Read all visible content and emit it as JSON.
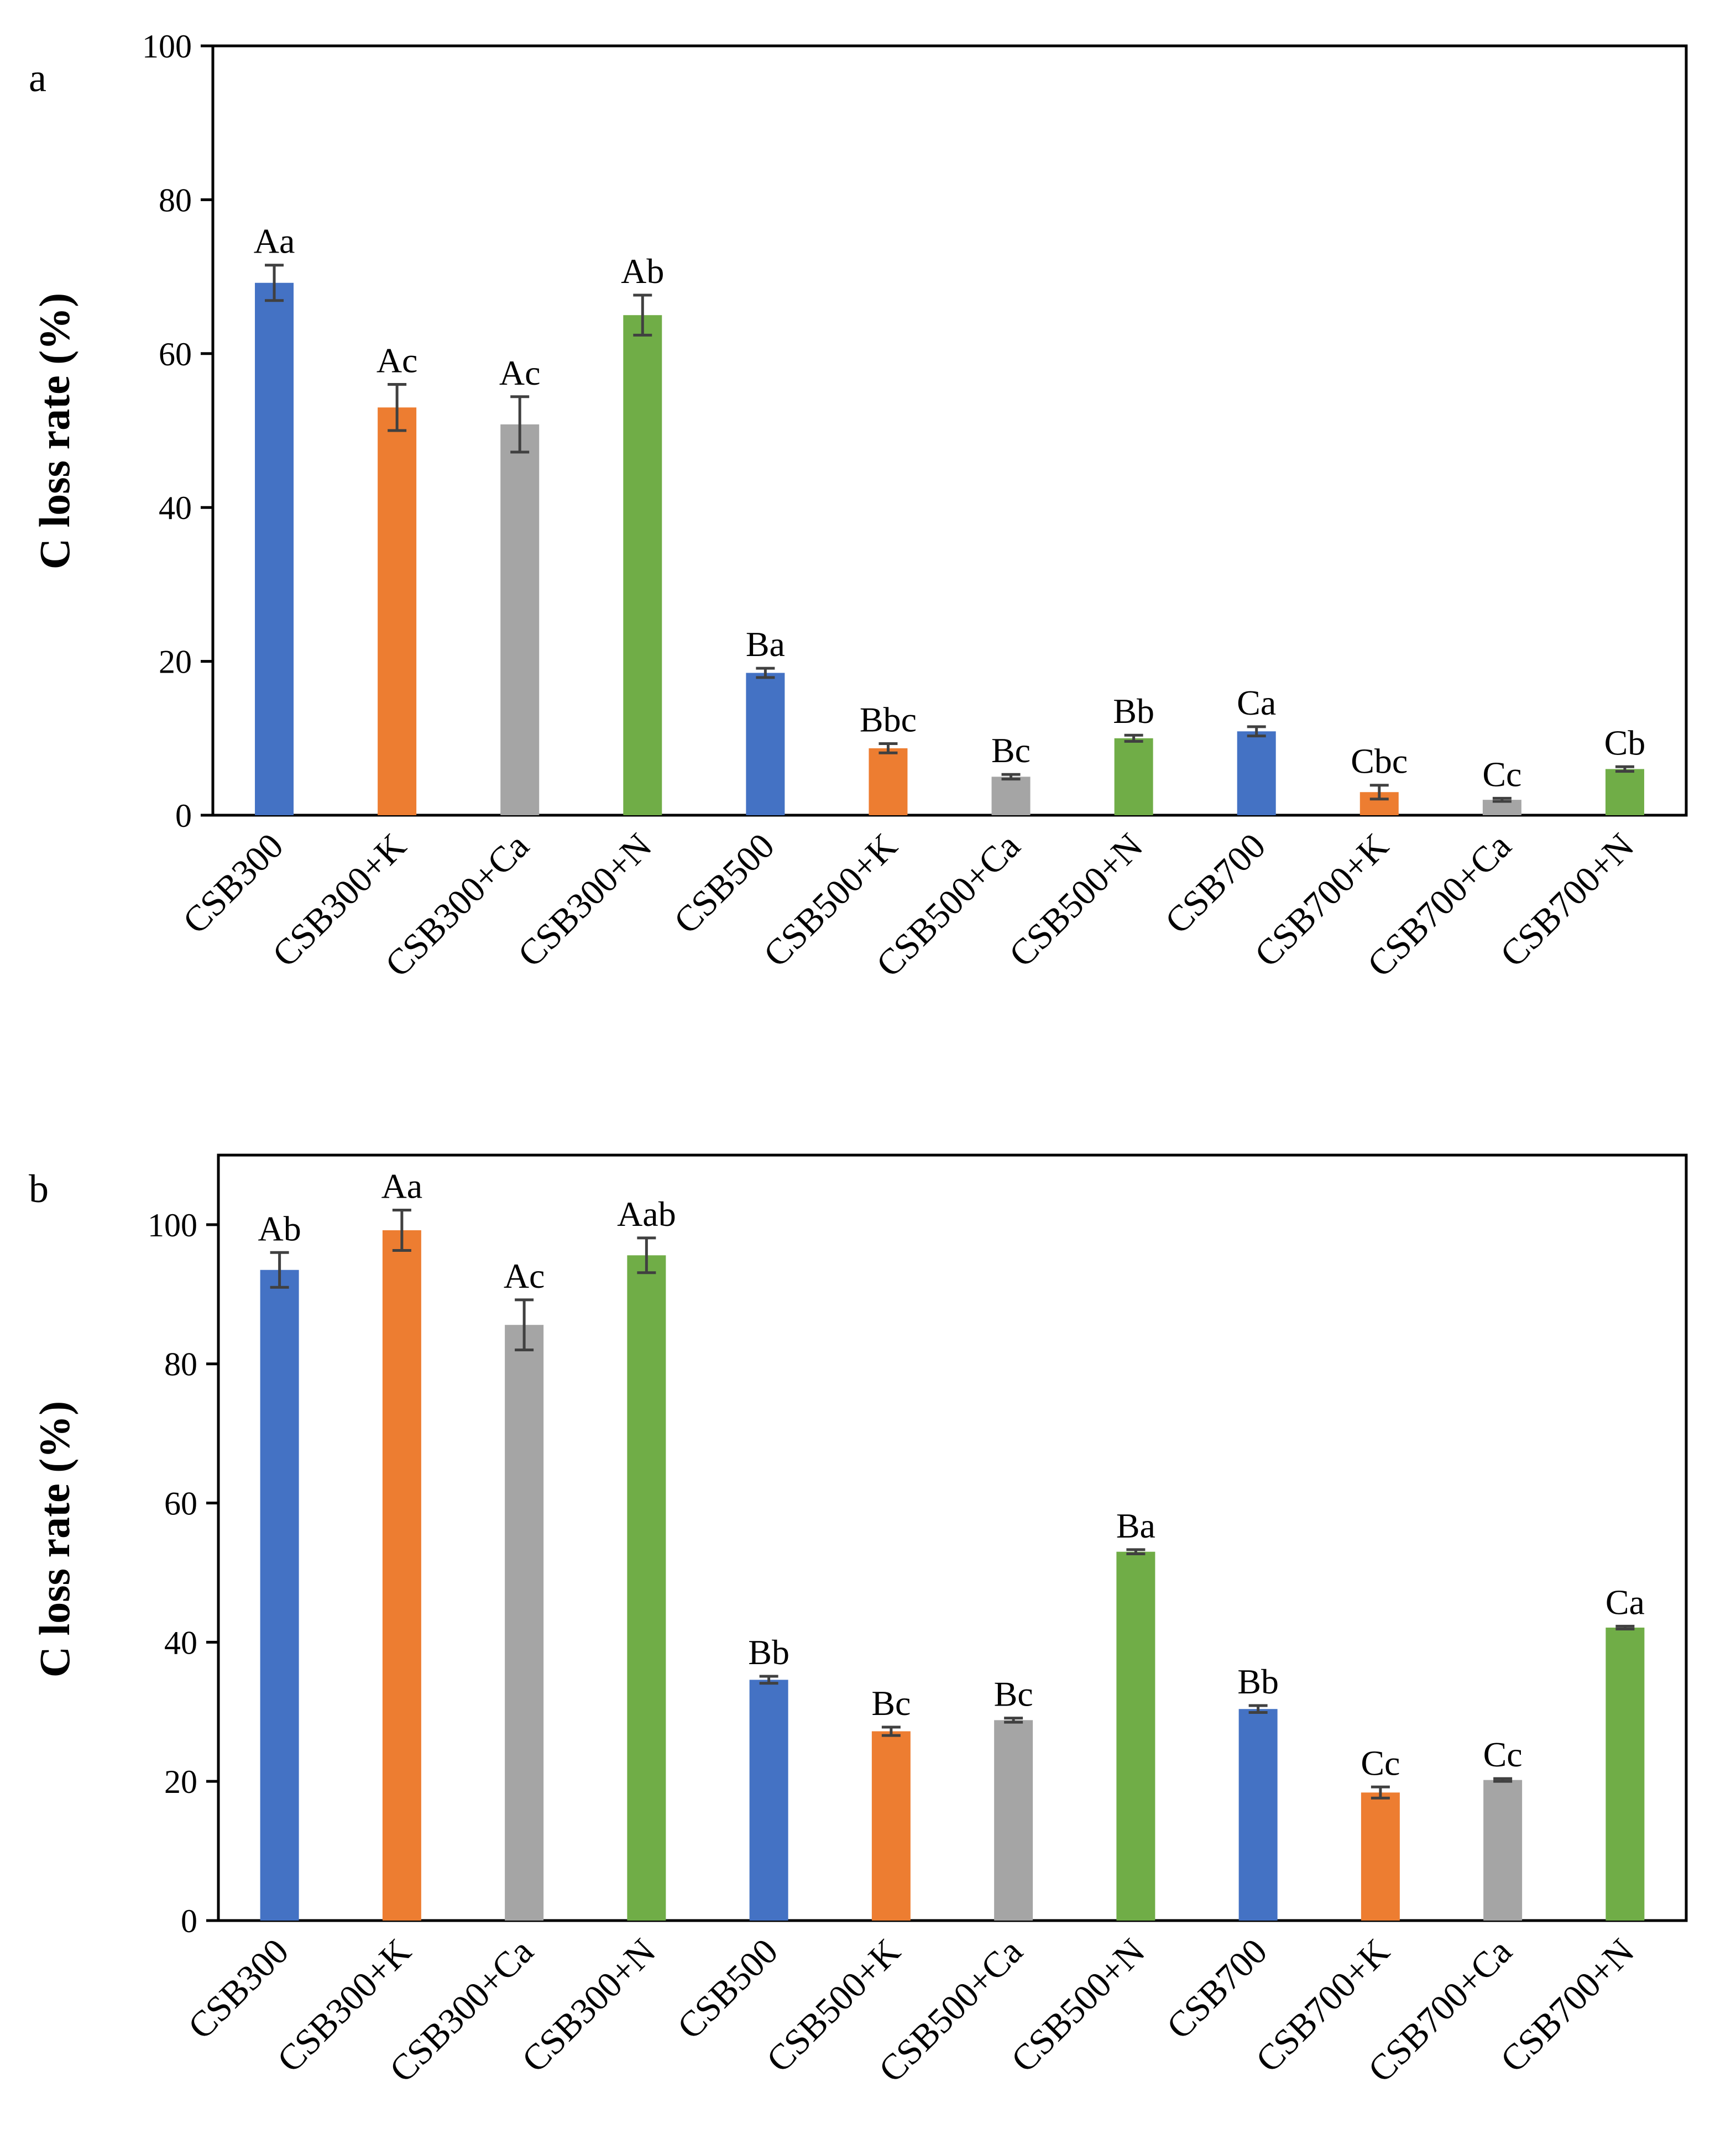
{
  "chart_data": [
    {
      "type": "bar",
      "panel": "a",
      "ylabel": "C loss rate (%)",
      "xlabel": "",
      "ylim": [
        0,
        100
      ],
      "yticks": [
        0,
        20,
        40,
        60,
        80,
        100
      ],
      "categories": [
        "CSB300",
        "CSB300+K",
        "CSB300+Ca",
        "CSB300+N",
        "CSB500",
        "CSB500+K",
        "CSB500+Ca",
        "CSB500+N",
        "CSB700",
        "CSB700+K",
        "CSB700+Ca",
        "CSB700+N"
      ],
      "values": [
        69.2,
        53.0,
        50.8,
        65.0,
        18.5,
        8.7,
        5.0,
        10.0,
        10.9,
        3.0,
        2.0,
        6.0
      ],
      "errors": [
        2.3,
        3.0,
        3.6,
        2.6,
        0.6,
        0.6,
        0.3,
        0.4,
        0.6,
        0.9,
        0.2,
        0.3
      ],
      "significance": [
        "Aa",
        "Ac",
        "Ac",
        "Ab",
        "Ba",
        "Bbc",
        "Bc",
        "Bb",
        "Ca",
        "Cbc",
        "Cc",
        "Cb"
      ],
      "colors": [
        "#4472C4",
        "#ED7D31",
        "#A5A5A5",
        "#70AD47",
        "#4472C4",
        "#ED7D31",
        "#A5A5A5",
        "#70AD47",
        "#4472C4",
        "#ED7D31",
        "#A5A5A5",
        "#70AD47"
      ]
    },
    {
      "type": "bar",
      "panel": "b",
      "ylabel": "C loss rate (%)",
      "xlabel": "",
      "ylim": [
        0,
        110
      ],
      "yticks": [
        0,
        20,
        40,
        60,
        80,
        100
      ],
      "categories": [
        "CSB300",
        "CSB300+K",
        "CSB300+Ca",
        "CSB300+N",
        "CSB500",
        "CSB500+K",
        "CSB500+Ca",
        "CSB500+N",
        "CSB700",
        "CSB700+K",
        "CSB700+Ca",
        "CSB700+N"
      ],
      "values": [
        93.5,
        99.2,
        85.6,
        95.6,
        34.6,
        27.2,
        28.8,
        53.0,
        30.4,
        18.4,
        20.2,
        42.1
      ],
      "errors": [
        2.5,
        2.9,
        3.6,
        2.5,
        0.5,
        0.6,
        0.3,
        0.3,
        0.5,
        0.8,
        0.2,
        0.2
      ],
      "significance": [
        "Ab",
        "Aa",
        "Ac",
        "Aab",
        "Bb",
        "Bc",
        "Bc",
        "Ba",
        "Bb",
        "Cc",
        "Cc",
        "Ca"
      ],
      "colors": [
        "#4472C4",
        "#ED7D31",
        "#A5A5A5",
        "#70AD47",
        "#4472C4",
        "#ED7D31",
        "#A5A5A5",
        "#70AD47",
        "#4472C4",
        "#ED7D31",
        "#A5A5A5",
        "#70AD47"
      ]
    }
  ]
}
